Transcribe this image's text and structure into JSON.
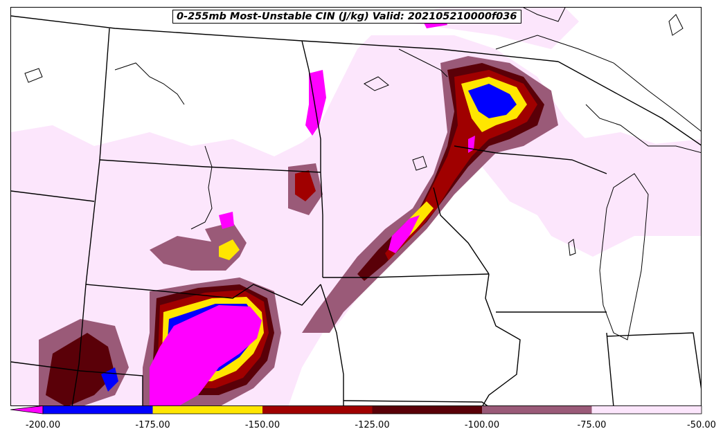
{
  "title": "0-255mb Most-Unstable CIN (J/kg) Valid: 202105210000f036",
  "colorbar": {
    "levels": [
      -200,
      -175,
      -150,
      -125,
      -100,
      -75,
      -50
    ],
    "tick_labels": [
      "-200.00",
      "-175.00",
      "-150.00",
      "-125.00",
      "-100.00",
      "-75.00",
      "-50.00"
    ],
    "extend": "min",
    "colors": [
      "#ff00ff",
      "#0000ff",
      "#ffe600",
      "#a00000",
      "#5a0008",
      "#9a5a78",
      "#fce6fc"
    ]
  },
  "map": {
    "field": "Most-Unstable CIN",
    "units": "J/kg",
    "layer": "0-255mb",
    "valid": "202105210000",
    "forecast_hour": "f036",
    "boundaries": [
      "state",
      "country",
      "coastline",
      "lakes"
    ]
  }
}
